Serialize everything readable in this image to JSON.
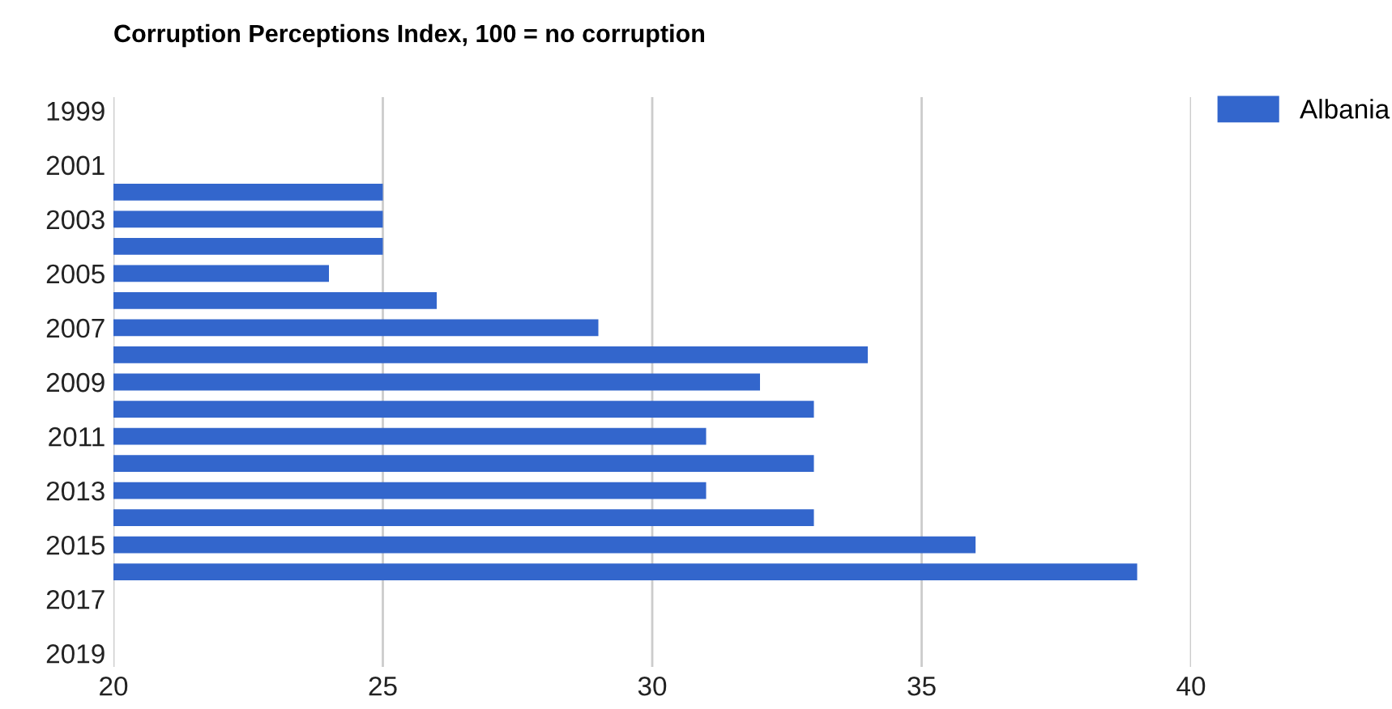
{
  "chart_data": {
    "type": "bar",
    "orientation": "horizontal",
    "title": "Corruption Perceptions Index, 100 = no corruption",
    "categories": [
      "1999",
      null,
      "2001",
      null,
      "2003",
      null,
      "2005",
      null,
      "2007",
      null,
      "2009",
      null,
      "2011",
      null,
      "2013",
      null,
      "2015",
      null,
      "2017",
      null,
      "2019"
    ],
    "series": [
      {
        "name": "Albania",
        "color": "#3366cc",
        "values": [
          null,
          null,
          null,
          25,
          25,
          25,
          24,
          26,
          29,
          34,
          32,
          33,
          31,
          33,
          31,
          33,
          36,
          39,
          null,
          null,
          null
        ]
      }
    ],
    "xlim": [
      20,
      40
    ],
    "xticks": [
      20,
      25,
      30,
      35,
      40
    ],
    "grid": "x",
    "legend": "top right"
  }
}
